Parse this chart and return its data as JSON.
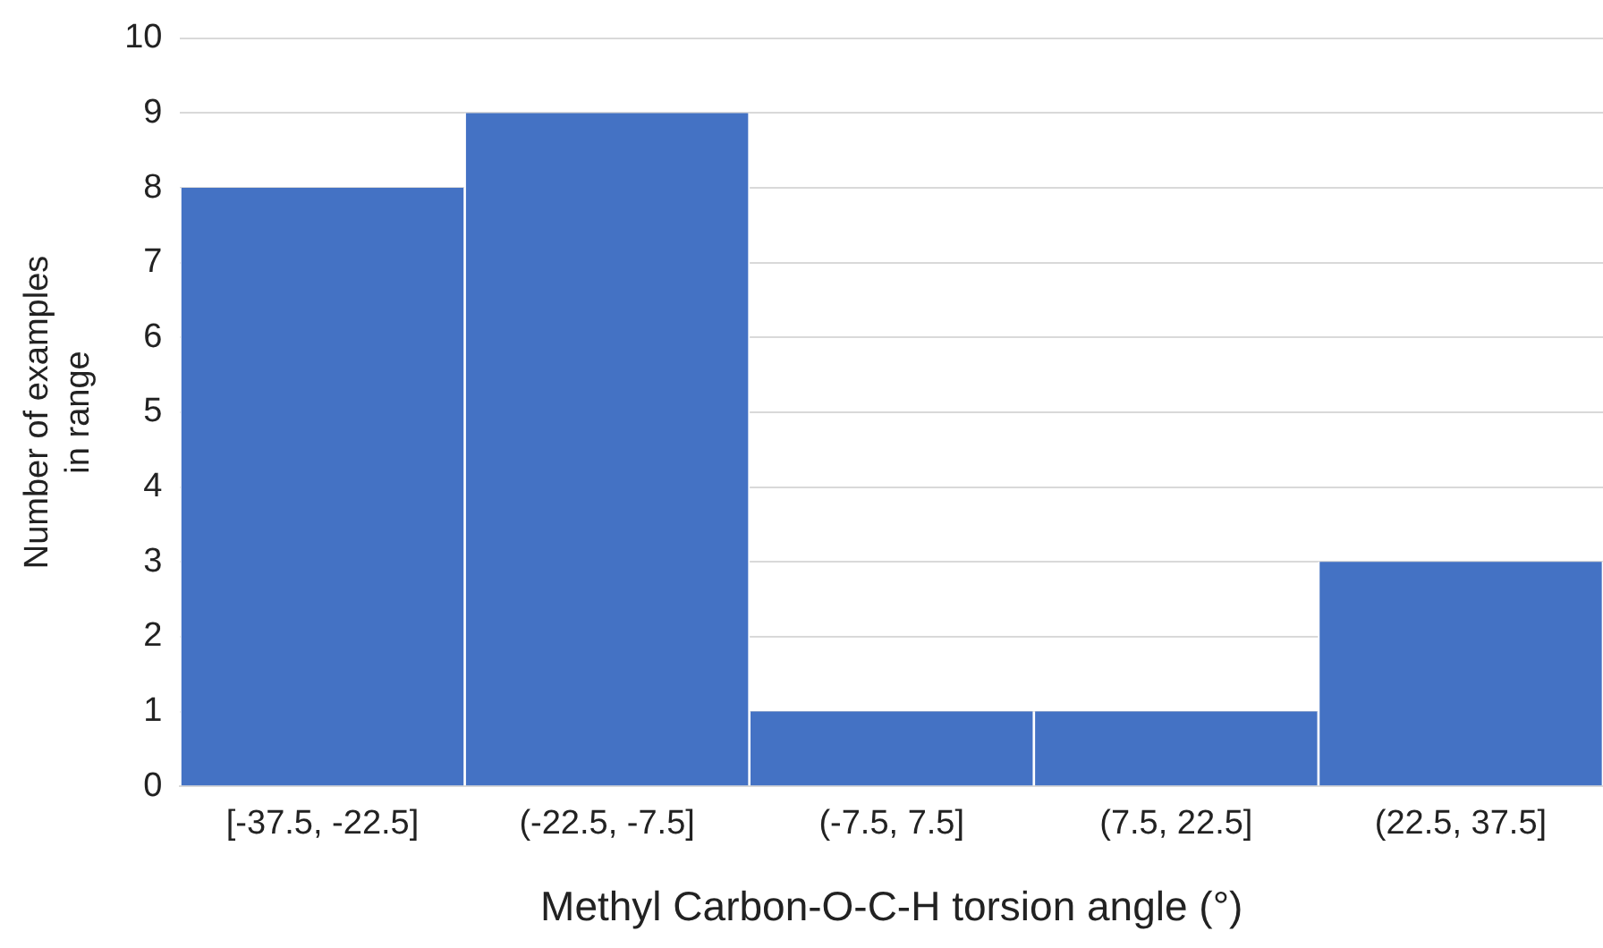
{
  "chart_data": {
    "type": "bar",
    "xlabel": "Methyl Carbon-O-C-H torsion angle (°)",
    "ylabel": "Number of examples in range",
    "categories": [
      "[-37.5, -22.5]",
      "(-22.5, -7.5]",
      "(-7.5, 7.5]",
      "(7.5, 22.5]",
      "(22.5, 37.5]"
    ],
    "values": [
      8,
      9,
      1,
      1,
      3
    ],
    "color": "#4472c4",
    "ylim": [
      0,
      10
    ],
    "yticks": [
      0,
      1,
      2,
      3,
      4,
      5,
      6,
      7,
      8,
      9,
      10
    ],
    "grid": "y"
  }
}
